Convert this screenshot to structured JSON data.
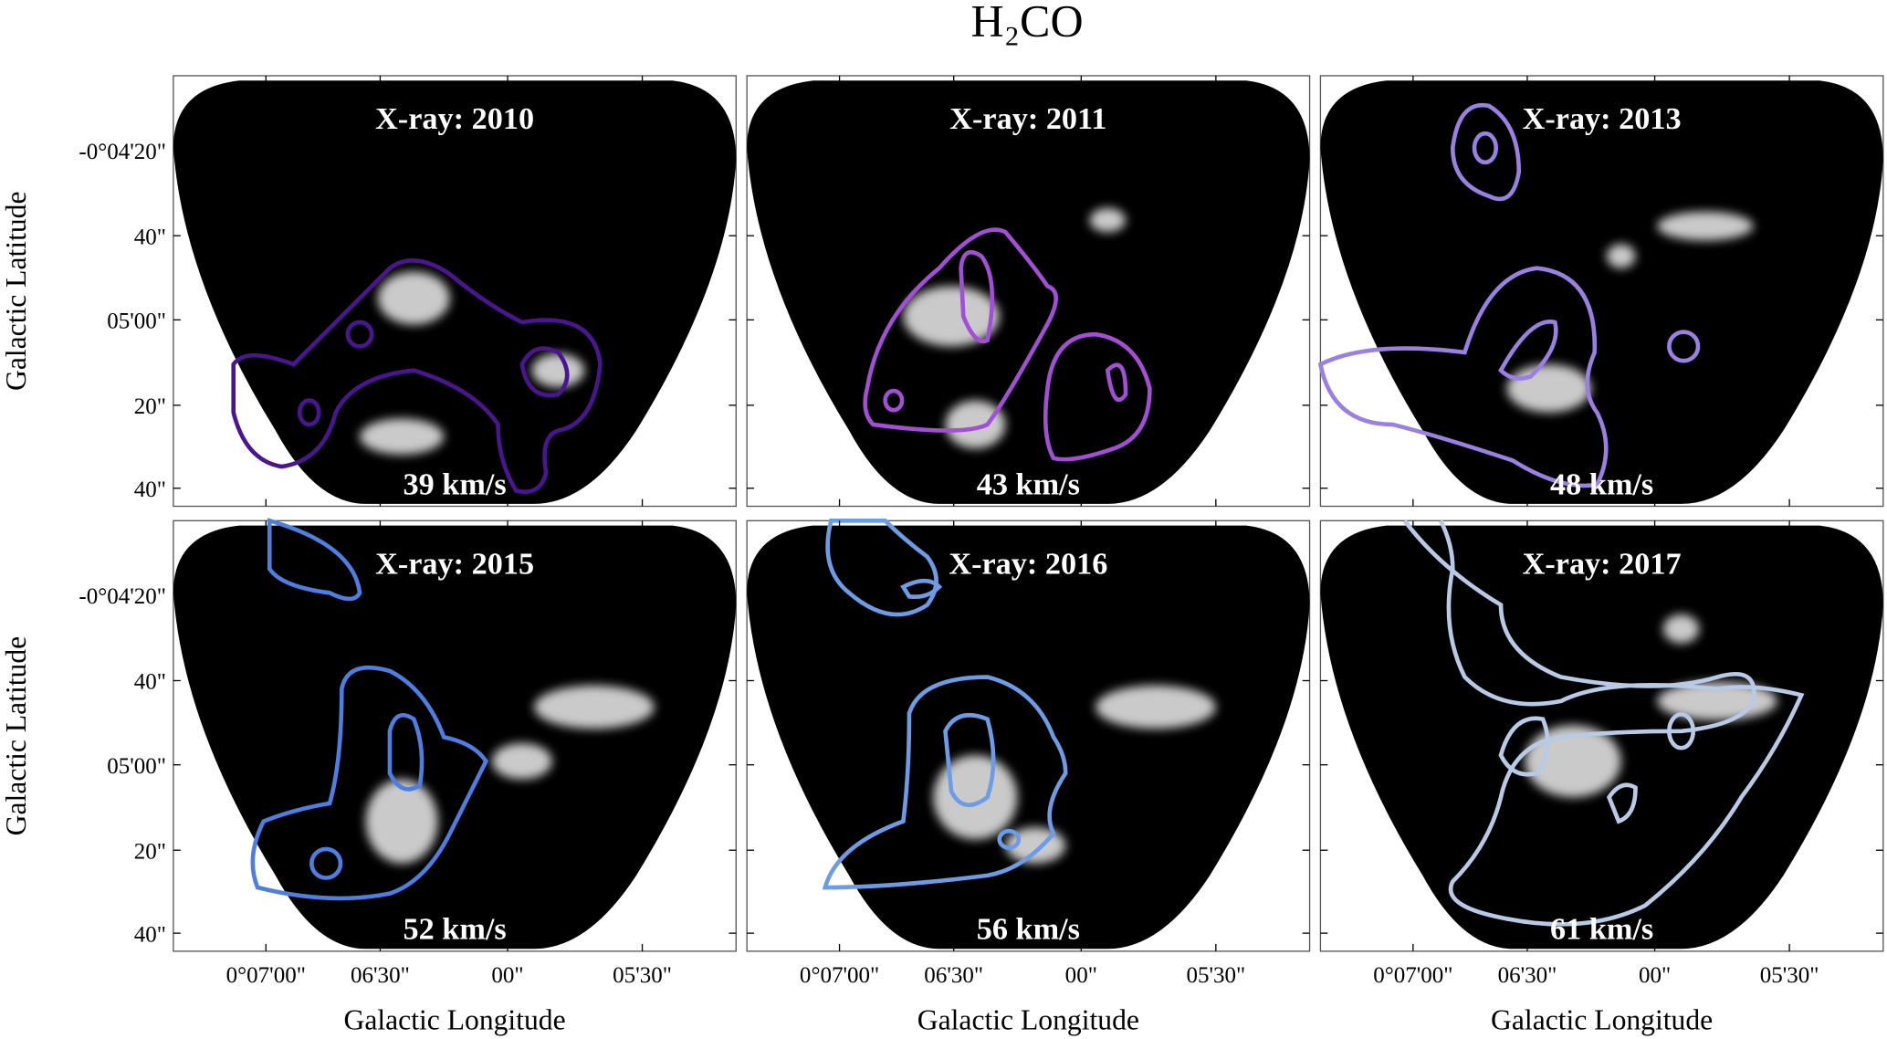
{
  "title": "H₂CO",
  "panels": [
    {
      "label": "X-ray: 2010",
      "velocity": "39 km/s"
    },
    {
      "label": "X-ray: 2011",
      "velocity": "43 km/s"
    },
    {
      "label": "X-ray: 2013",
      "velocity": "48 km/s"
    },
    {
      "label": "X-ray: 2015",
      "velocity": "52 km/s"
    },
    {
      "label": "X-ray: 2016",
      "velocity": "56 km/s"
    },
    {
      "label": "X-ray: 2017",
      "velocity": "61 km/s"
    }
  ],
  "y_axis": {
    "label": "Galactic Latitude",
    "ticks": [
      "-0°04'20\"",
      "40\"",
      "05'00\"",
      "20\"",
      "40\""
    ]
  },
  "x_axis": {
    "label": "Galactic Longitude",
    "ticks": [
      "0°07'00\"",
      "06'30\"",
      "00\"",
      "05'30\""
    ]
  }
}
